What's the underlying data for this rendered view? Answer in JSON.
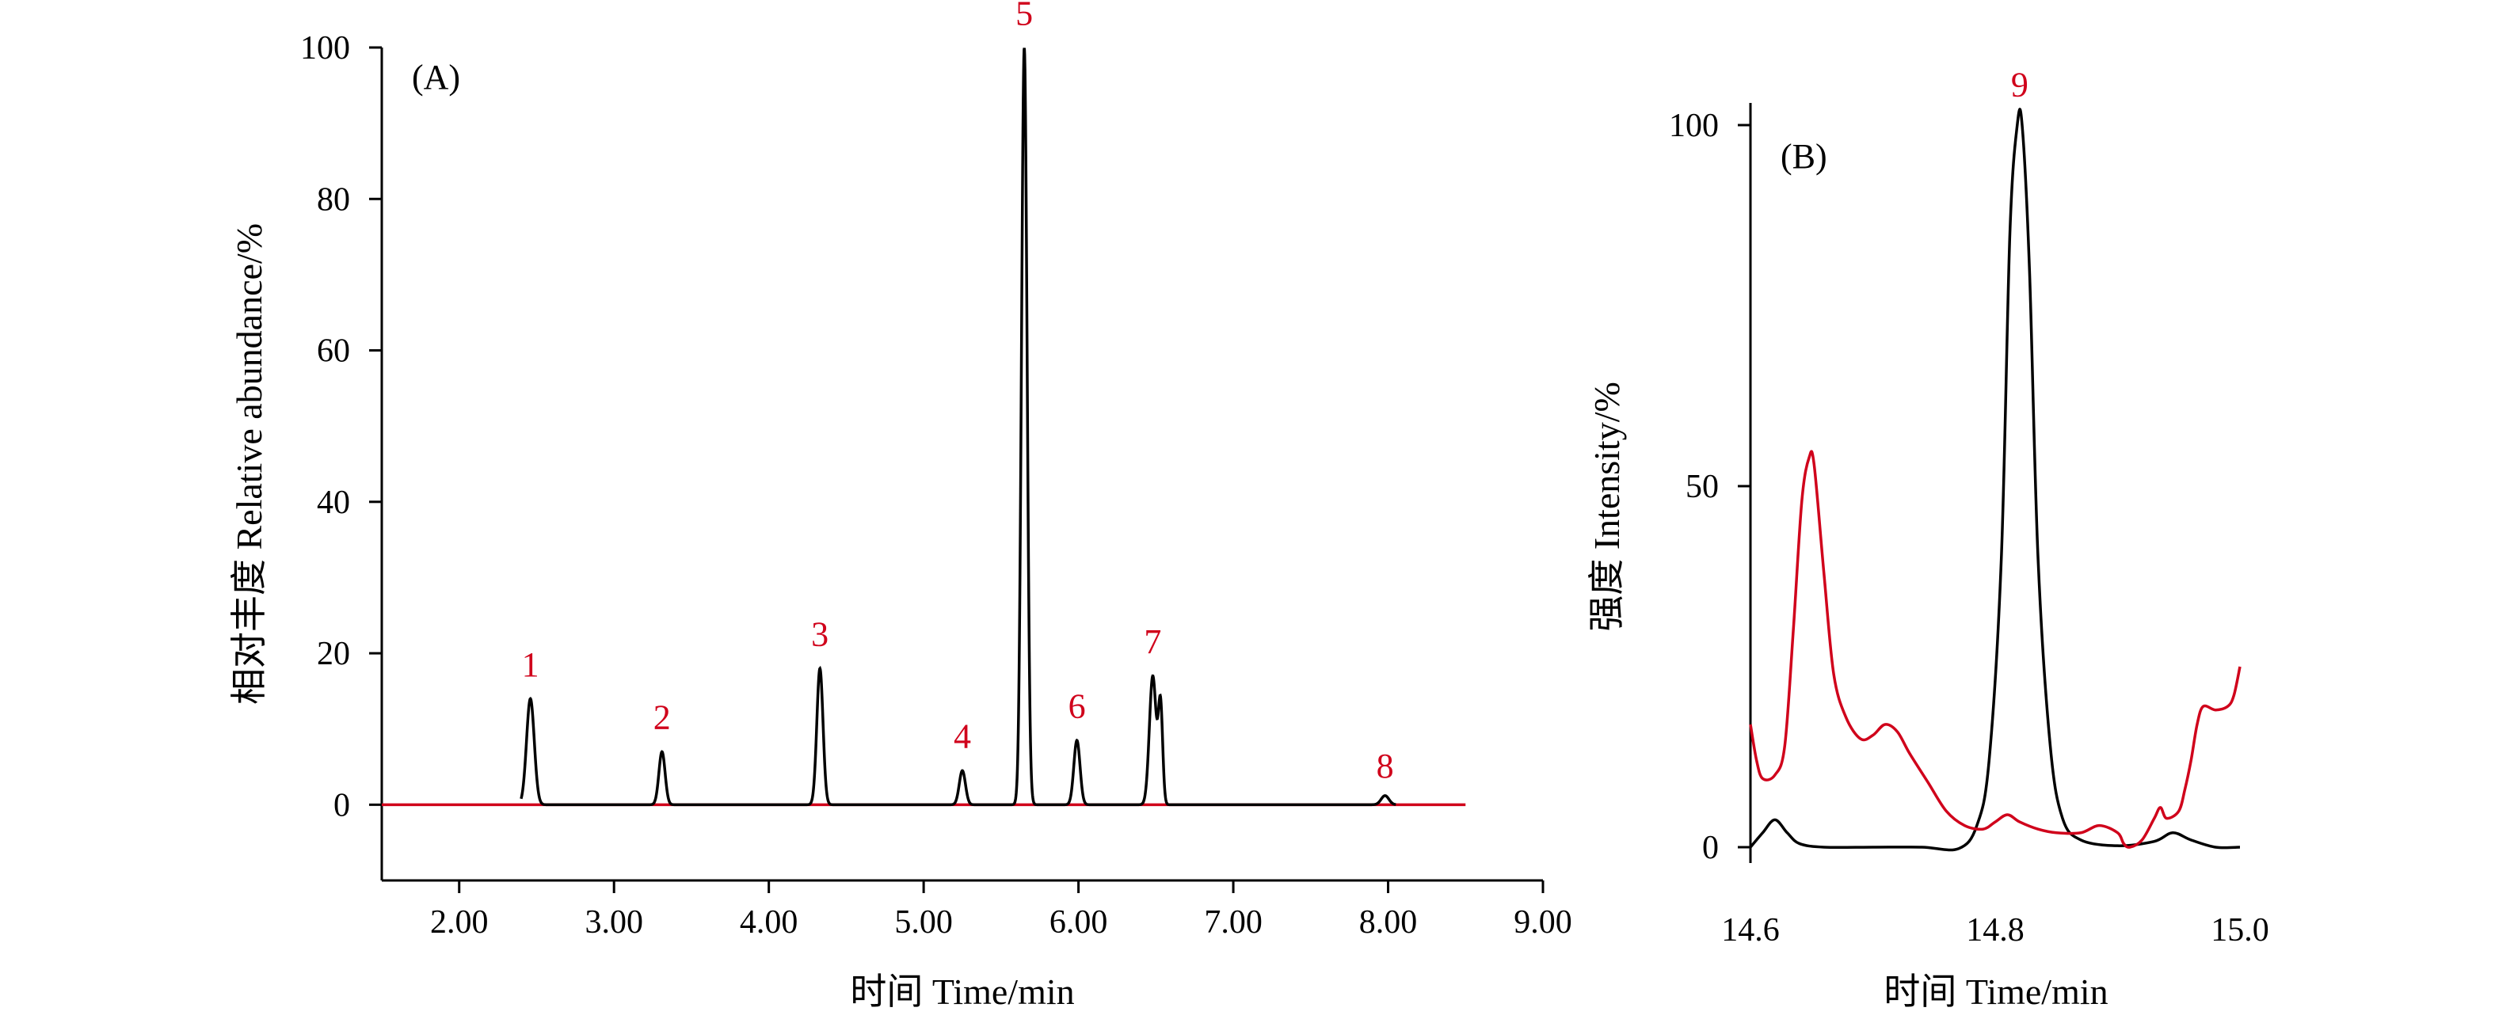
{
  "chart_data": [
    {
      "type": "line",
      "panel_label": "(A)",
      "xlabel": "时间 Time/min",
      "ylabel": "相对丰度 Relative abundance/%",
      "xlim": [
        1.5,
        9.0
      ],
      "ylim": [
        -10,
        100
      ],
      "xticks": [
        "2.00",
        "3.00",
        "4.00",
        "5.00",
        "6.00",
        "7.00",
        "8.00",
        "9.00"
      ],
      "yticks": [
        "0",
        "20",
        "40",
        "60",
        "80",
        "100"
      ],
      "colors": {
        "black": "#000000",
        "red": "#d0021b"
      },
      "series": [
        {
          "color": "#000000",
          "peaks": [
            {
              "x": 2.46,
              "y": 14,
              "width": 0.025
            },
            {
              "x": 3.31,
              "y": 7,
              "width": 0.02
            },
            {
              "x": 4.33,
              "y": 18,
              "width": 0.02
            },
            {
              "x": 5.25,
              "y": 4.5,
              "width": 0.02
            },
            {
              "x": 5.65,
              "y": 100,
              "width": 0.018
            },
            {
              "x": 5.99,
              "y": 8.5,
              "width": 0.02
            },
            {
              "x": 6.48,
              "y": 17,
              "width": 0.022
            },
            {
              "x": 6.53,
              "y": 13,
              "width": 0.014
            },
            {
              "x": 7.98,
              "y": 1.2,
              "width": 0.025
            }
          ],
          "x_range": [
            2.4,
            8.05
          ]
        },
        {
          "color": "#d0021b",
          "x": [
            1.5,
            8.5
          ],
          "y": [
            0,
            0
          ]
        }
      ],
      "annotations": [
        {
          "text": "1",
          "x": 2.46,
          "y": 17
        },
        {
          "text": "2",
          "x": 3.31,
          "y": 10
        },
        {
          "text": "3",
          "x": 4.33,
          "y": 21
        },
        {
          "text": "4",
          "x": 5.25,
          "y": 7.5
        },
        {
          "text": "5",
          "x": 5.65,
          "y": 103
        },
        {
          "text": "6",
          "x": 5.99,
          "y": 11.5
        },
        {
          "text": "7",
          "x": 6.48,
          "y": 20
        },
        {
          "text": "8",
          "x": 7.98,
          "y": 3.6
        }
      ]
    },
    {
      "type": "line",
      "panel_label": "(B)",
      "xlabel": "时间 Time/min",
      "ylabel": "强度 Intensity/%",
      "xlim": [
        14.6,
        15.0
      ],
      "ylim": [
        -3,
        100
      ],
      "xticks": [
        "14.6",
        "14.8",
        "15.0"
      ],
      "yticks": [
        "0",
        "50",
        "100"
      ],
      "series": [
        {
          "color": "#000000",
          "x": [
            14.6,
            14.61,
            14.62,
            14.63,
            14.64,
            14.66,
            14.7,
            14.74,
            14.77,
            14.785,
            14.795,
            14.805,
            14.812,
            14.818,
            14.822,
            14.828,
            14.835,
            14.845,
            14.855,
            14.87,
            14.9,
            14.93,
            14.945,
            14.96,
            14.98,
            15.0
          ],
          "y": [
            0,
            2,
            3.8,
            2,
            0.5,
            0,
            0,
            0,
            -0.2,
            3,
            12,
            40,
            85,
            100,
            100,
            80,
            40,
            14,
            4,
            1,
            0.2,
            0.8,
            2,
            1,
            0,
            0
          ]
        },
        {
          "color": "#d0021b",
          "x": [
            14.6,
            14.605,
            14.61,
            14.62,
            14.628,
            14.635,
            14.642,
            14.648,
            14.652,
            14.66,
            14.668,
            14.678,
            14.69,
            14.7,
            14.71,
            14.72,
            14.73,
            14.745,
            14.76,
            14.775,
            14.79,
            14.8,
            14.81,
            14.82,
            14.835,
            14.85,
            14.87,
            14.885,
            14.9,
            14.905,
            14.91,
            14.92,
            14.93,
            14.935,
            14.94,
            14.95,
            14.955,
            14.96,
            14.965,
            14.97,
            14.98,
            14.99,
            14.995,
            15.0
          ],
          "y": [
            17,
            12,
            9.5,
            10,
            14,
            30,
            48,
            54,
            53,
            38,
            24,
            18,
            15,
            15.5,
            17,
            16,
            13,
            9,
            5,
            3,
            2.5,
            3.5,
            4.5,
            3.5,
            2.5,
            2,
            2,
            3,
            2,
            0.5,
            0,
            1,
            4,
            5.5,
            4,
            5,
            8,
            12,
            17,
            19.5,
            19,
            19.5,
            21,
            25
          ]
        }
      ],
      "annotations": [
        {
          "text": "9",
          "x": 14.82,
          "y": 104
        }
      ]
    }
  ]
}
